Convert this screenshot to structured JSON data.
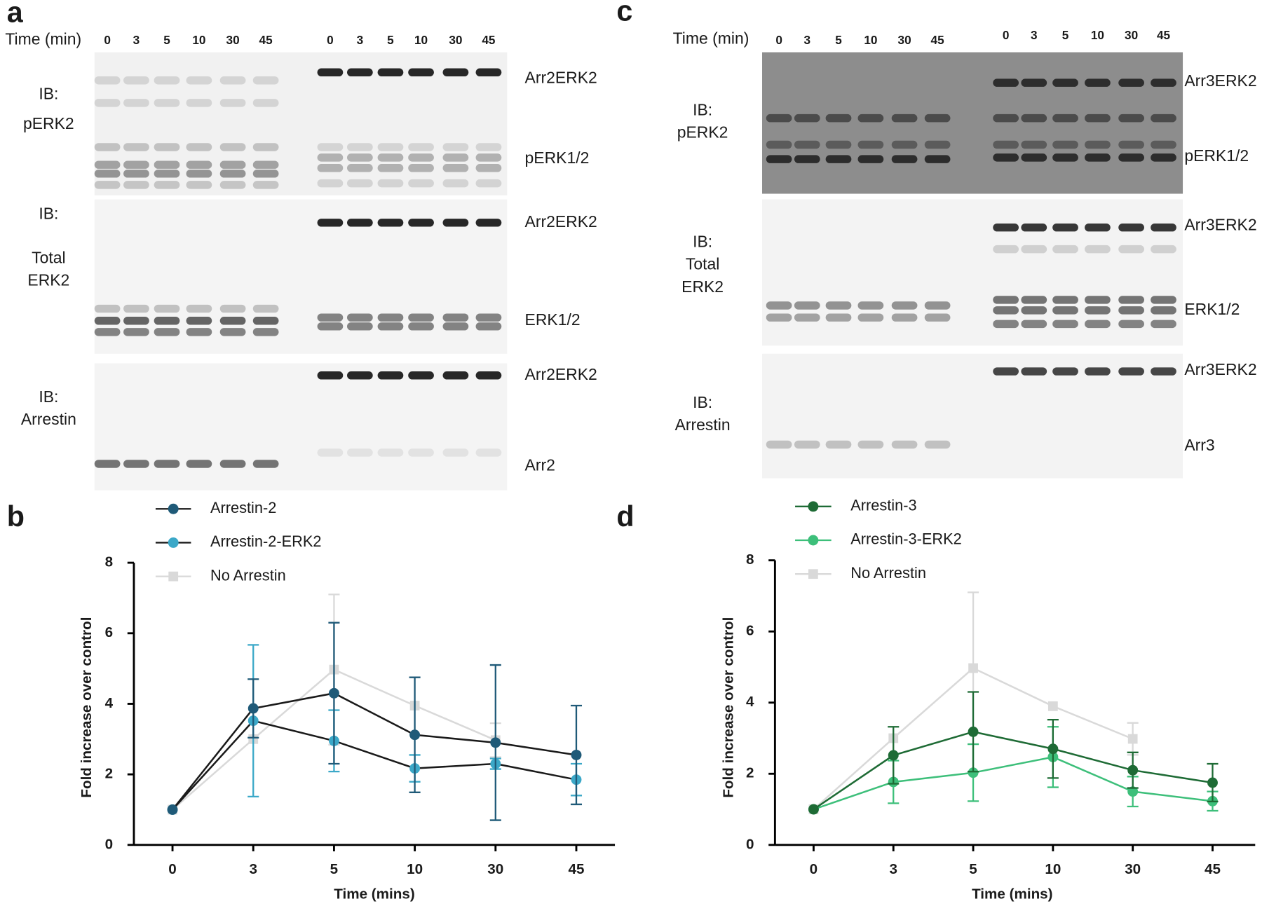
{
  "blots": [
    {
      "panel": "a",
      "time_label": "Time (min)",
      "lanes_left": [
        "0",
        "3",
        "5",
        "10",
        "30",
        "45"
      ],
      "lanes_right": [
        "0",
        "3",
        "5",
        "10",
        "30",
        "45"
      ],
      "rows": [
        {
          "ib": [
            "IB:",
            "pERK2"
          ],
          "bands": [
            "Arr2ERK2",
            "pERK1/2"
          ]
        },
        {
          "ib": [
            "IB:",
            "Total",
            "ERK2"
          ],
          "bands": [
            "Arr2ERK2",
            "ERK1/2"
          ]
        },
        {
          "ib": [
            "IB:",
            "Arrestin"
          ],
          "bands": [
            "Arr2ERK2",
            "Arr2"
          ]
        }
      ]
    },
    {
      "panel": "c",
      "time_label": "Time (min)",
      "lanes_left": [
        "0",
        "3",
        "5",
        "10",
        "30",
        "45"
      ],
      "lanes_right": [
        "0",
        "3",
        "5",
        "10",
        "30",
        "45"
      ],
      "rows": [
        {
          "ib": [
            "IB:",
            "pERK2"
          ],
          "bands": [
            "Arr3ERK2",
            "pERK1/2"
          ]
        },
        {
          "ib": [
            "IB:",
            "Total",
            "ERK2"
          ],
          "bands": [
            "Arr3ERK2",
            "ERK1/2"
          ]
        },
        {
          "ib": [
            "IB:",
            "Arrestin"
          ],
          "bands": [
            "Arr3ERK2",
            "Arr3"
          ]
        }
      ]
    }
  ],
  "chart_data": [
    {
      "type": "line",
      "panel": "b",
      "x_label": "Time  (mins)",
      "y_label": "Fold increase over control",
      "categories": [
        "0",
        "3",
        "5",
        "10",
        "30",
        "45"
      ],
      "ylim": [
        0,
        8
      ],
      "yticks": [
        0,
        2,
        4,
        6,
        8
      ],
      "series": [
        {
          "name": "Arrestin-2",
          "color": "#1f5a78",
          "line_color": "#1a1a1a",
          "marker": "circle",
          "values": [
            1,
            3.87,
            4.3,
            3.12,
            2.9,
            2.55
          ],
          "errors": [
            null,
            0.83,
            2.0,
            1.63,
            2.2,
            1.4
          ]
        },
        {
          "name": "Arrestin-2-ERK2",
          "color": "#3ba8c8",
          "line_color": "#1a1a1a",
          "marker": "circle",
          "values": [
            1,
            3.52,
            2.95,
            2.17,
            2.3,
            1.85
          ],
          "errors": [
            null,
            2.15,
            0.87,
            0.38,
            0.15,
            0.45
          ]
        },
        {
          "name": "No Arrestin",
          "color": "#d9d9d9",
          "line_color": "#d9d9d9",
          "marker": "square",
          "values": [
            1,
            3.0,
            4.97,
            3.95,
            2.97,
            null
          ],
          "errors": [
            null,
            null,
            2.13,
            null,
            0.48,
            null
          ]
        }
      ]
    },
    {
      "type": "line",
      "panel": "d",
      "x_label": "Time  (mins)",
      "y_label": "Fold increase over control",
      "categories": [
        "0",
        "3",
        "5",
        "10",
        "30",
        "45"
      ],
      "ylim": [
        0,
        8
      ],
      "yticks": [
        0,
        2,
        4,
        6,
        8
      ],
      "series": [
        {
          "name": "Arrestin-3",
          "color": "#1e6b35",
          "line_color": "#1e6b35",
          "marker": "circle",
          "values": [
            1,
            2.52,
            3.18,
            2.7,
            2.1,
            1.75
          ],
          "errors": [
            null,
            0.8,
            1.12,
            0.82,
            0.5,
            0.53
          ]
        },
        {
          "name": "Arrestin-3-ERK2",
          "color": "#3dbf7a",
          "line_color": "#3dbf7a",
          "marker": "circle",
          "values": [
            1,
            1.77,
            2.03,
            2.47,
            1.5,
            1.23
          ],
          "errors": [
            null,
            0.6,
            0.8,
            0.85,
            0.42,
            0.27
          ]
        },
        {
          "name": "No Arrestin",
          "color": "#d9d9d9",
          "line_color": "#d9d9d9",
          "marker": "square",
          "values": [
            1,
            3.0,
            4.97,
            3.9,
            2.98,
            null
          ],
          "errors": [
            null,
            null,
            2.13,
            null,
            0.45,
            null
          ]
        }
      ]
    }
  ]
}
